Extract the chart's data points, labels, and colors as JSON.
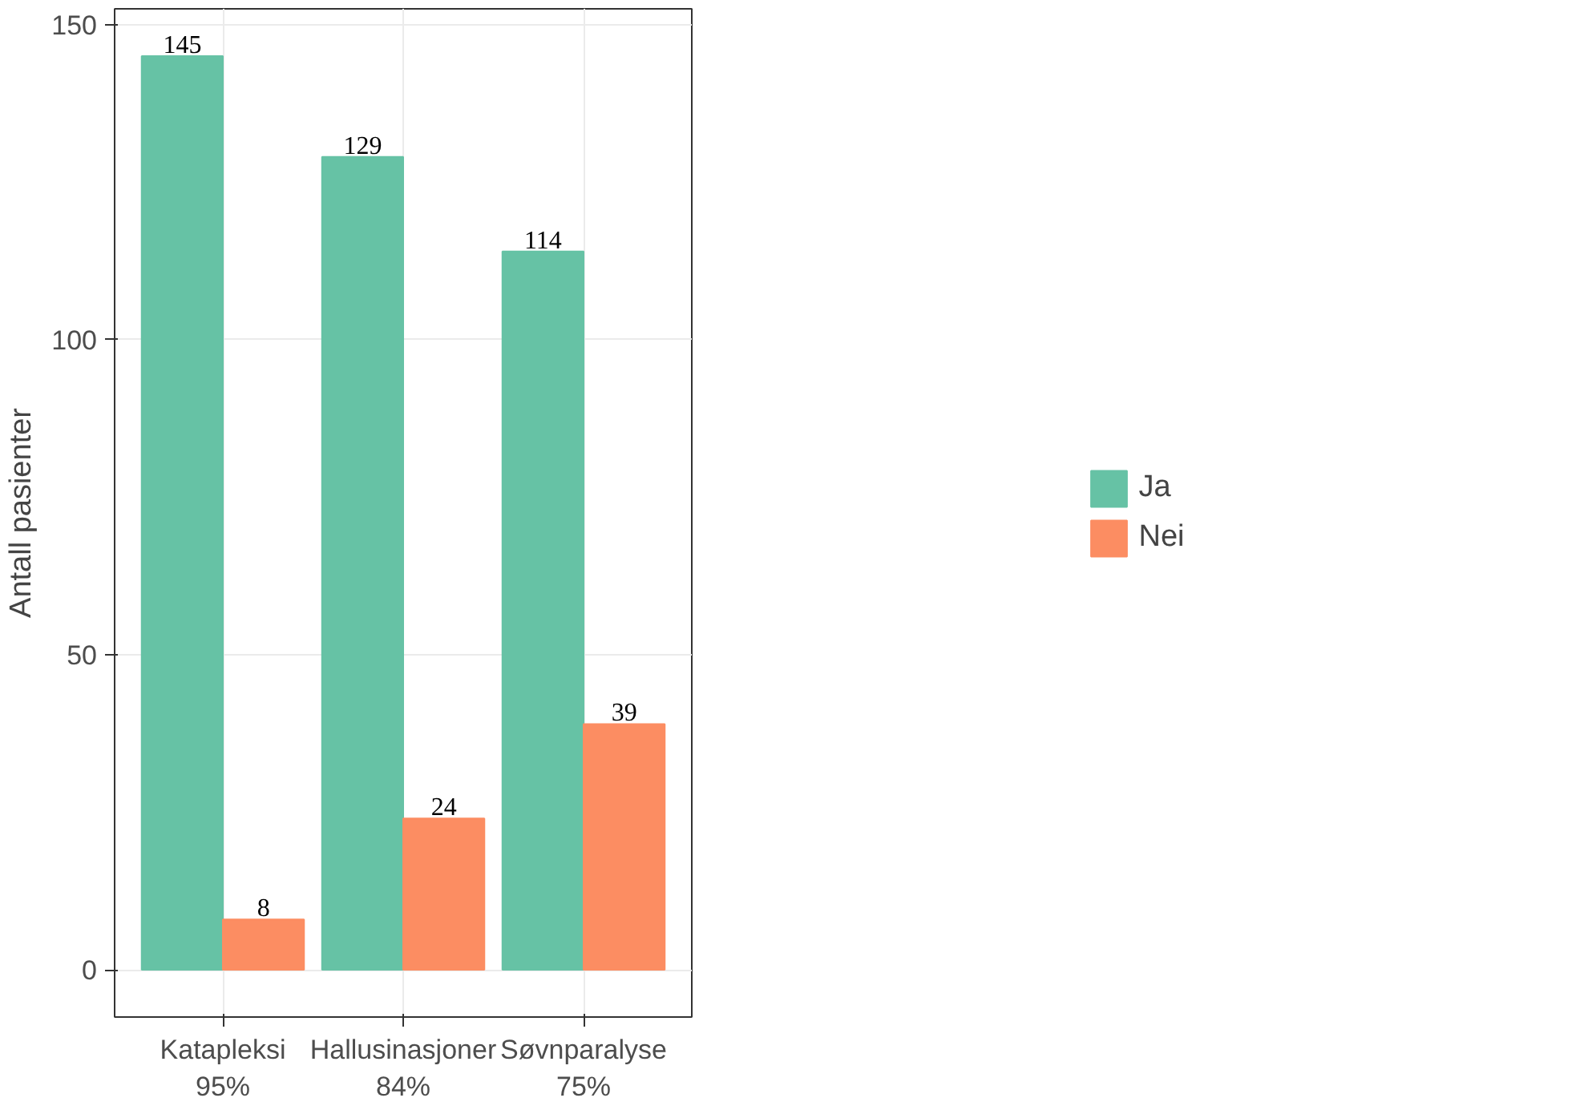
{
  "chart_data": {
    "type": "bar",
    "ylabel": "Antall pasienter",
    "categories": [
      "Katapleksi\n95%",
      "Hallusinasjoner\n84%",
      "Søvnparalyse\n75%"
    ],
    "series": [
      {
        "name": "Ja",
        "color": "#66c2a5",
        "values": [
          145,
          129,
          114
        ]
      },
      {
        "name": "Nei",
        "color": "#fc8d62",
        "values": [
          8,
          24,
          39
        ]
      }
    ],
    "ylim": [
      -7.5,
      152.5
    ],
    "yticks": [
      0,
      50,
      100,
      150
    ],
    "grid": true,
    "legend": "right",
    "data_labels": true
  }
}
